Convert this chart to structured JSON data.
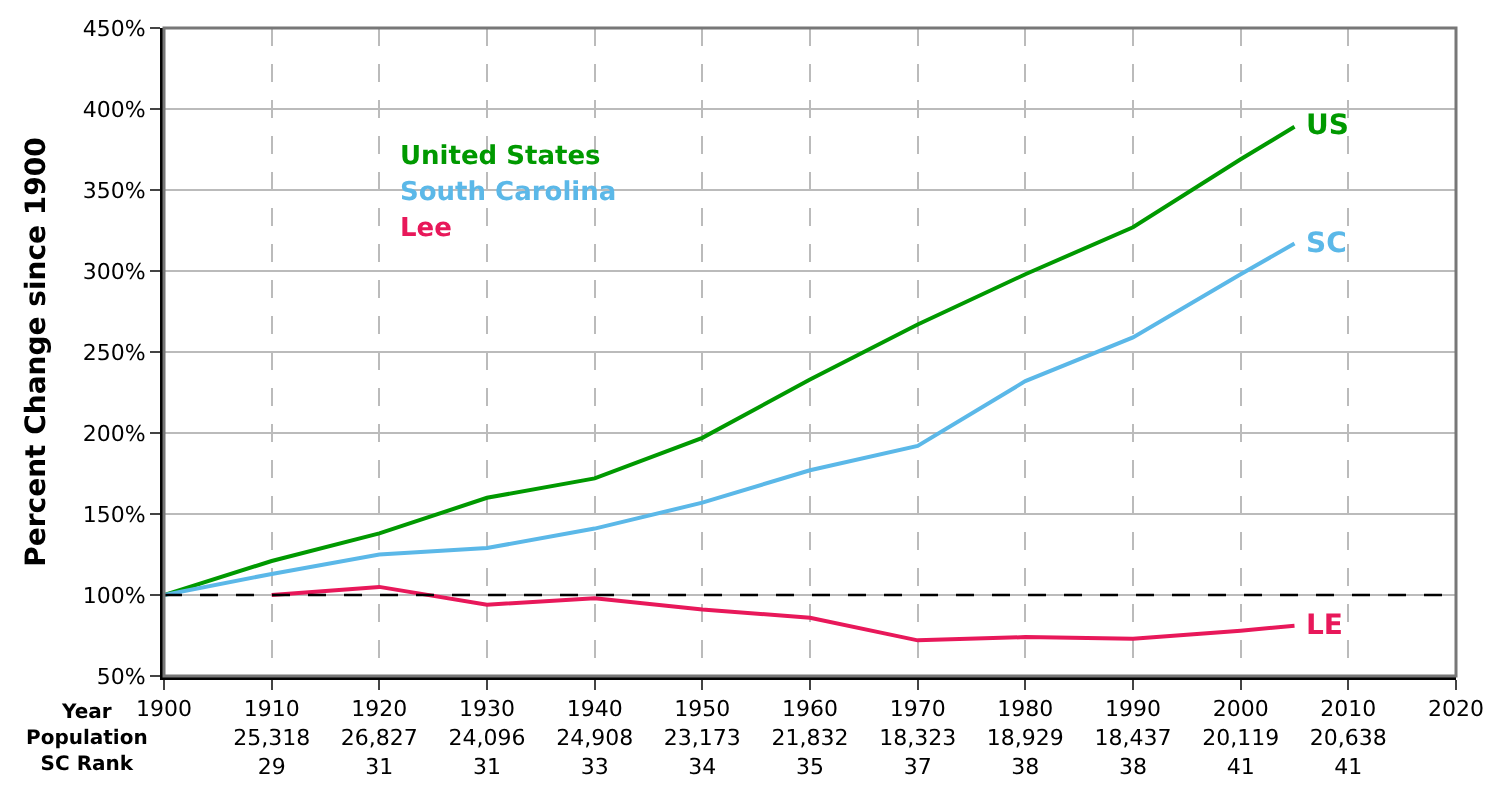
{
  "chart_data": {
    "type": "line",
    "ylabel": "Percent Change since 1900",
    "x": [
      1900,
      1910,
      1920,
      1930,
      1940,
      1950,
      1960,
      1970,
      1980,
      1990,
      2000,
      2005
    ],
    "series": [
      {
        "name": "United States",
        "color": "#009900",
        "values": [
          100,
          121,
          138,
          160,
          172,
          197,
          233,
          267,
          298,
          327,
          369,
          389
        ]
      },
      {
        "name": "South Carolina",
        "color": "#5bb8e8",
        "values": [
          100,
          113,
          125,
          129,
          141,
          157,
          177,
          192,
          232,
          259,
          298,
          317
        ]
      },
      {
        "name": "Lee",
        "color": "#e8185a",
        "values": [
          null,
          100,
          105,
          94,
          98,
          91,
          86,
          72,
          74,
          73,
          78,
          81
        ]
      }
    ],
    "xlim": [
      1900,
      2020
    ],
    "xticks": [
      {
        "value": 1900,
        "label": "1900"
      },
      {
        "value": 1910,
        "label": "1910\n25,318\n29"
      },
      {
        "value": 1920,
        "label": "1920\n26,827\n31"
      },
      {
        "value": 1930,
        "label": "1930\n24,096\n31"
      },
      {
        "value": 1940,
        "label": "1940\n24,908\n33"
      },
      {
        "value": 1950,
        "label": "1950\n23,173\n34"
      },
      {
        "value": 1960,
        "label": "1960\n21,832\n35"
      },
      {
        "value": 1970,
        "label": "1970\n18,323\n37"
      },
      {
        "value": 1980,
        "label": "1980\n18,929\n38"
      },
      {
        "value": 1990,
        "label": "1990\n18,437\n38"
      },
      {
        "value": 2000,
        "label": "2000\n20,119\n41"
      },
      {
        "value": 2010,
        "label": "2010\n20,638\n41"
      },
      {
        "value": 2020,
        "label": "2020"
      }
    ],
    "ylim": [
      50,
      450
    ],
    "yticks": [
      {
        "value": 50,
        "label": "50%"
      },
      {
        "value": 100,
        "label": "100%"
      },
      {
        "value": 150,
        "label": "150%"
      },
      {
        "value": 200,
        "label": "200%"
      },
      {
        "value": 250,
        "label": "250%"
      },
      {
        "value": 300,
        "label": "300%"
      },
      {
        "value": 350,
        "label": "350%"
      },
      {
        "value": 400,
        "label": "400%"
      },
      {
        "value": 450,
        "label": "450%"
      }
    ],
    "ref_lines": [
      {
        "axis": "y",
        "value": 100,
        "label": null,
        "color": "#000000",
        "line_style": "dashed"
      }
    ],
    "annotations": [
      "Year\nPopulation\nSC Rank",
      "US",
      "SC",
      "LE"
    ],
    "grid": true,
    "legend": "top left",
    "marker": "none",
    "line_style": "solid"
  }
}
